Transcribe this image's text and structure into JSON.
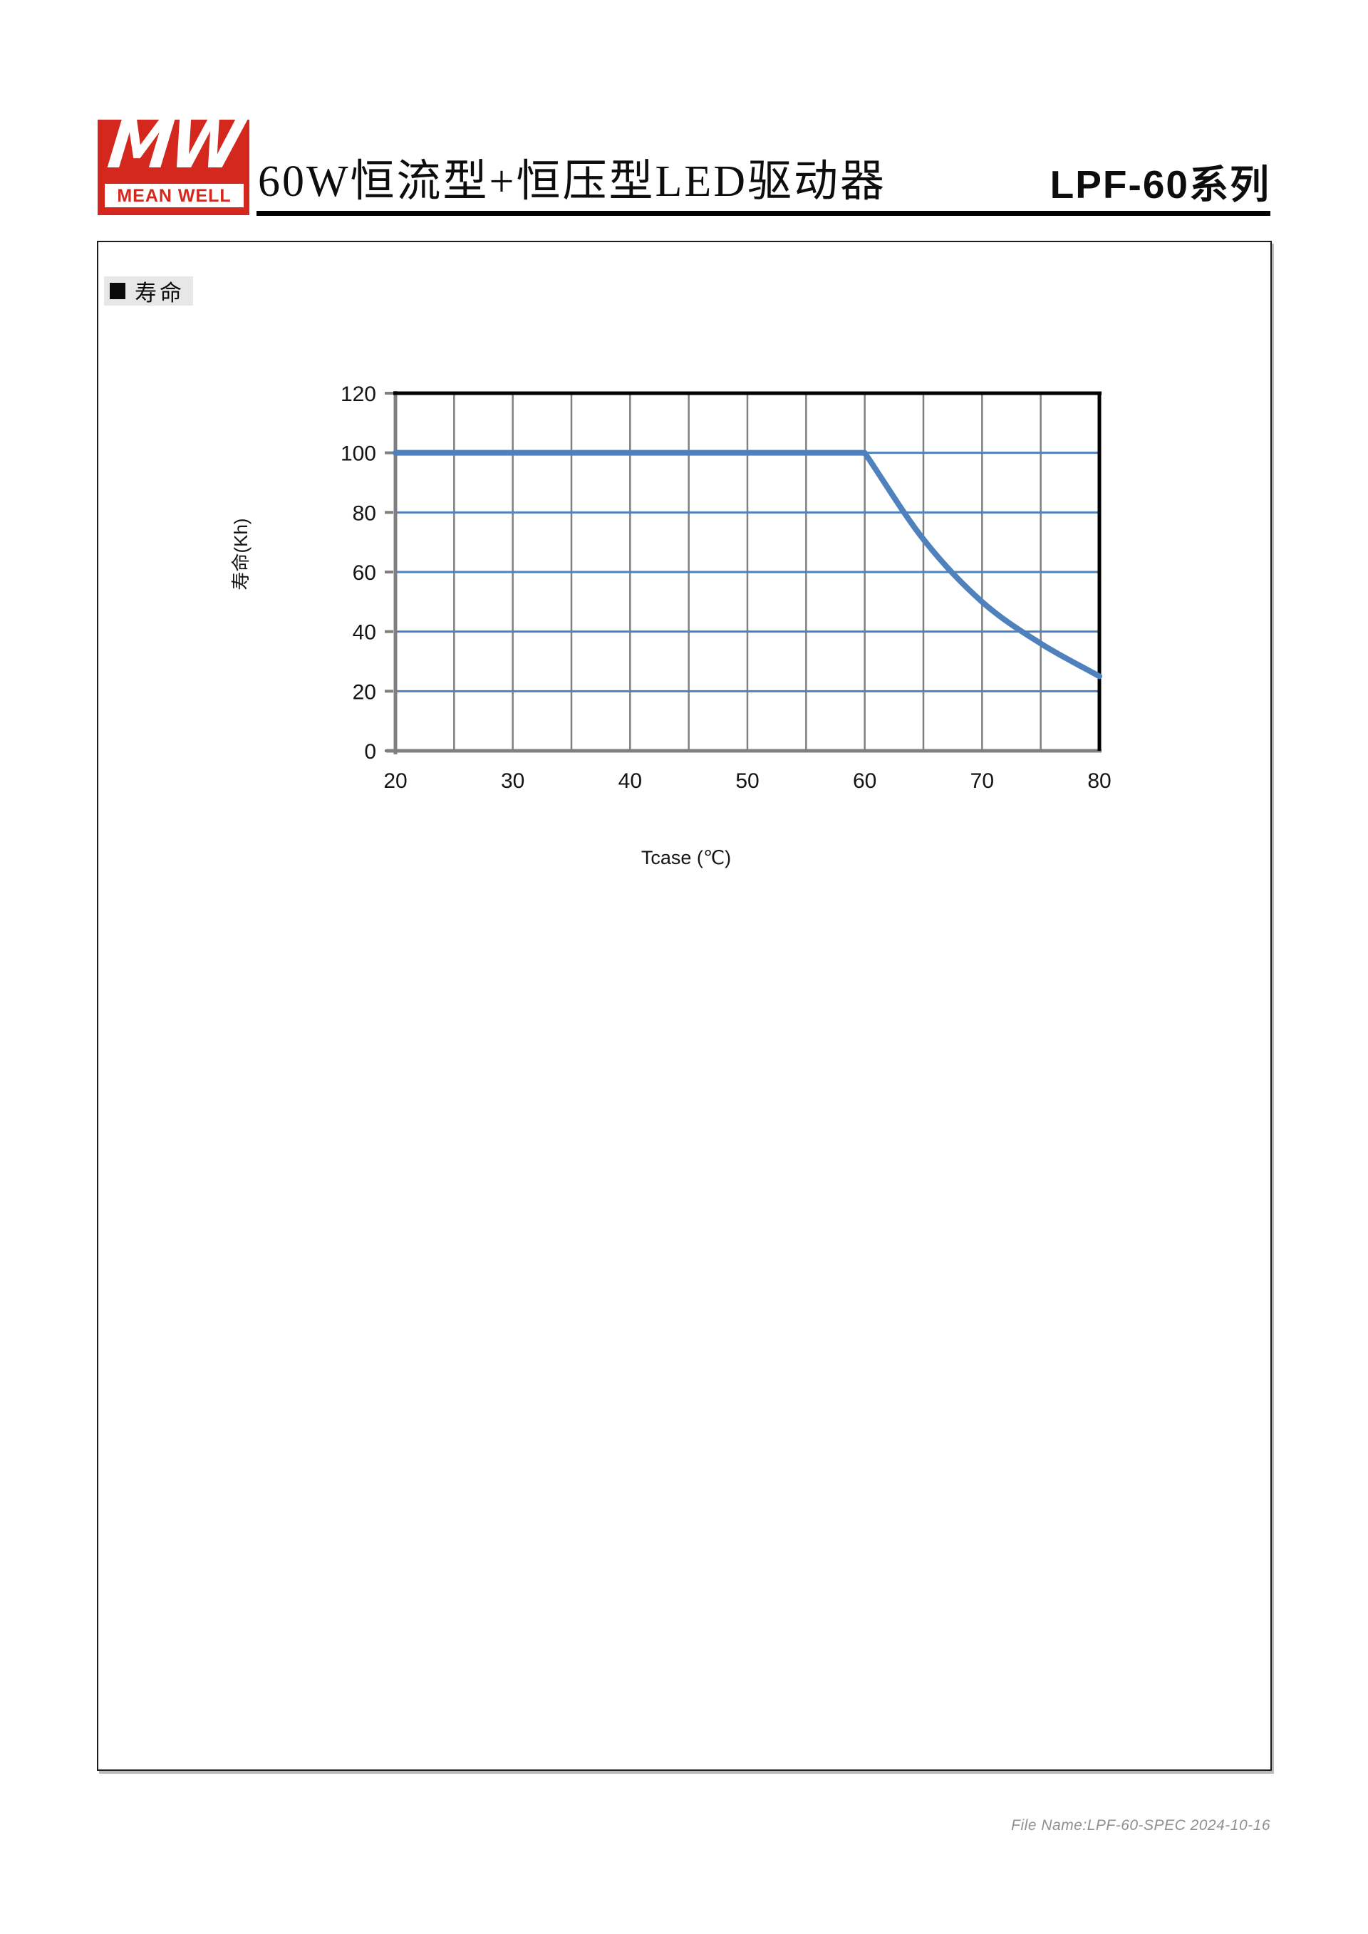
{
  "header": {
    "logo": {
      "mw": "MW",
      "brand": "MEAN WELL"
    },
    "title_zh": "60W恒流型+恒压型LED驱动器",
    "series_title": "LPF-60系列"
  },
  "section": {
    "label": "寿命"
  },
  "chart_data": {
    "type": "line",
    "title": "",
    "xlabel": "Tcase (℃)",
    "ylabel": "寿命(Kh)",
    "xlim": [
      20,
      80
    ],
    "ylim": [
      0,
      120
    ],
    "x_ticks": [
      20,
      30,
      40,
      50,
      60,
      70,
      80
    ],
    "y_ticks": [
      0,
      20,
      40,
      60,
      80,
      100,
      120
    ],
    "x_grid_step": 5,
    "grid": "on",
    "legend_position": "none",
    "series": [
      {
        "name": "寿命",
        "x": [
          20,
          60,
          65,
          70,
          75,
          80
        ],
        "y": [
          100,
          100,
          71,
          50,
          36,
          25
        ],
        "color": "#4f81bd"
      }
    ]
  },
  "footer": {
    "file_info": "File Name:LPF-60-SPEC  2024-10-16"
  },
  "colors": {
    "brand_red": "#d4281e",
    "curve_blue": "#4f81bd",
    "hgrid_blue": "#4f81bd",
    "vgrid_gray": "#808080",
    "axis_gray": "#808080",
    "frame_black": "#000000"
  }
}
